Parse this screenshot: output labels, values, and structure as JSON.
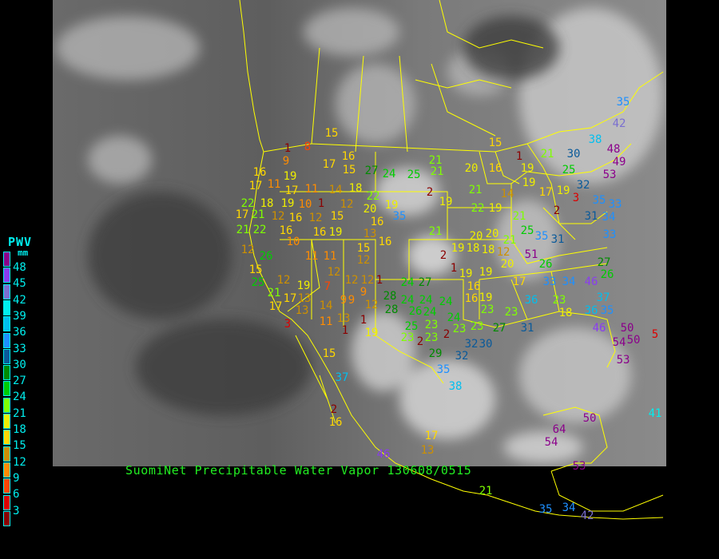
{
  "caption": "SuomiNet Precipitable Water Vapor 130608/0515",
  "legend": {
    "title": "PWV",
    "unit": "mm",
    "ticks": [
      "48",
      "45",
      "42",
      "39",
      "36",
      "33",
      "30",
      "27",
      "24",
      "21",
      "18",
      "15",
      "12",
      "9",
      "6",
      "3"
    ],
    "colors": [
      "#8b008b",
      "#8a3cf0",
      "#7a6fd0",
      "#00eeee",
      "#00bfef",
      "#1e90ff",
      "#0a5a9a",
      "#008b00",
      "#00cd00",
      "#7fff00",
      "#eeee00",
      "#ffd700",
      "#cd9000",
      "#ff8c00",
      "#ff4500",
      "#dd0000",
      "#8b0000"
    ]
  },
  "border_color": "#ffff00",
  "station_values": [
    15,
    35,
    42,
    38,
    48,
    15,
    16,
    1,
    9,
    8,
    17,
    15,
    27,
    24,
    25,
    21,
    21,
    20,
    16,
    1,
    19,
    21,
    30,
    25,
    53,
    49,
    16,
    19,
    17,
    11,
    17,
    11,
    14,
    18,
    22,
    20,
    19,
    2,
    19,
    21,
    14,
    19,
    17,
    19,
    3,
    32,
    35,
    33,
    22,
    18,
    19,
    10,
    1,
    12,
    16,
    35,
    22,
    19,
    21,
    2,
    31,
    34,
    17,
    21,
    12,
    16,
    12,
    15,
    13,
    21,
    22,
    16,
    16,
    19,
    21,
    19,
    20,
    20,
    21,
    25,
    35,
    31,
    33,
    12,
    26,
    10,
    15,
    16,
    11,
    11,
    12,
    2,
    18,
    18,
    12,
    51,
    15,
    12,
    12,
    12,
    1,
    1,
    19,
    19,
    20,
    26,
    27,
    26,
    25,
    12,
    19,
    24,
    27,
    16,
    17,
    33,
    34,
    46,
    21,
    17,
    13,
    7,
    9,
    9,
    28,
    24,
    24,
    24,
    16,
    19,
    36,
    23,
    37,
    17,
    13,
    14,
    9,
    12,
    28,
    26,
    24,
    23,
    24,
    23,
    23,
    18,
    36,
    35,
    3,
    11,
    13,
    1,
    19,
    25,
    23,
    23,
    23,
    27,
    31,
    46,
    50,
    5,
    1,
    23,
    2,
    2,
    32,
    30,
    54,
    50,
    15,
    29,
    32,
    35,
    53,
    37,
    38,
    2,
    16,
    50,
    64,
    54,
    17,
    13,
    46,
    53,
    21,
    35,
    34,
    42,
    41
  ]
}
